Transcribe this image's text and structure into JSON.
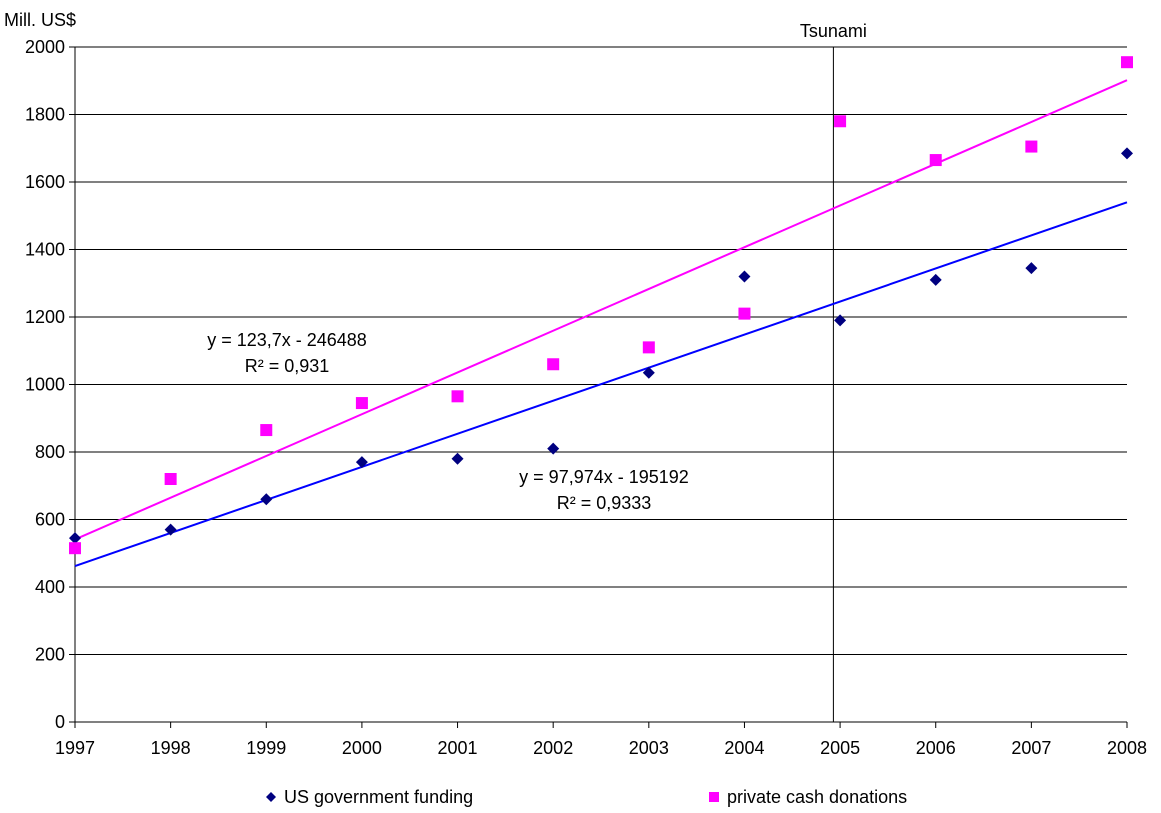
{
  "chart_data": {
    "type": "scatter",
    "ylabel": "Mill. US$",
    "xlim": [
      1997,
      2008
    ],
    "ylim": [
      0,
      2000
    ],
    "x_ticks": [
      1997,
      1998,
      1999,
      2000,
      2001,
      2002,
      2003,
      2004,
      2005,
      2006,
      2007,
      2008
    ],
    "y_ticks": [
      0,
      200,
      400,
      600,
      800,
      1000,
      1200,
      1400,
      1600,
      1800,
      2000
    ],
    "grid": "horizontal",
    "legend_position": "bottom",
    "annotation": {
      "label": "Tsunami",
      "x": 2004.93
    },
    "series": [
      {
        "name": "US government funding",
        "color": "#000080",
        "marker": "diamond",
        "x": [
          1997,
          1998,
          1999,
          2000,
          2001,
          2002,
          2003,
          2004,
          2005,
          2006,
          2007,
          2008
        ],
        "y": [
          545,
          570,
          660,
          770,
          780,
          810,
          1035,
          1320,
          1190,
          1310,
          1345,
          1685
        ],
        "trendline": {
          "slope": 97.974,
          "intercept": -195192,
          "color": "#0000ff",
          "equation": "y = 97,974x - 195192",
          "r2": "R² = 0,9333"
        }
      },
      {
        "name": "private cash donations",
        "color": "#ff00ff",
        "marker": "square",
        "x": [
          1997,
          1998,
          1999,
          2000,
          2001,
          2002,
          2003,
          2004,
          2005,
          2006,
          2007,
          2008
        ],
        "y": [
          515,
          720,
          865,
          945,
          965,
          1060,
          1110,
          1210,
          1780,
          1665,
          1705,
          1955
        ],
        "trendline": {
          "slope": 123.7,
          "intercept": -246488,
          "color": "#ff00ff",
          "equation": "y = 123,7x - 246488",
          "r2": "R² = 0,931"
        }
      }
    ]
  }
}
